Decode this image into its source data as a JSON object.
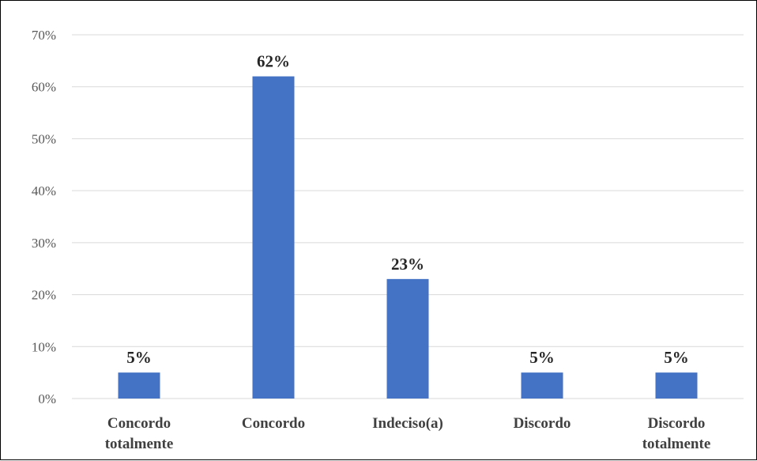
{
  "chart_data": {
    "type": "bar",
    "categories": [
      [
        "Concordo",
        "totalmente"
      ],
      [
        "Concordo"
      ],
      [
        "Indeciso(a)"
      ],
      [
        "Discordo"
      ],
      [
        "Discordo",
        "totalmente"
      ]
    ],
    "values": [
      5,
      62,
      23,
      5,
      5
    ],
    "data_labels": [
      "5%",
      "62%",
      "23%",
      "5%",
      "5%"
    ],
    "y_ticks": [
      0,
      10,
      20,
      30,
      40,
      50,
      60,
      70
    ],
    "y_tick_labels": [
      "0%",
      "10%",
      "20%",
      "30%",
      "40%",
      "50%",
      "60%",
      "70%"
    ],
    "ylim": [
      0,
      70
    ],
    "grid": true,
    "legend": "none",
    "bar_color": "#4472C4",
    "grid_color": "#D9D9D9"
  }
}
